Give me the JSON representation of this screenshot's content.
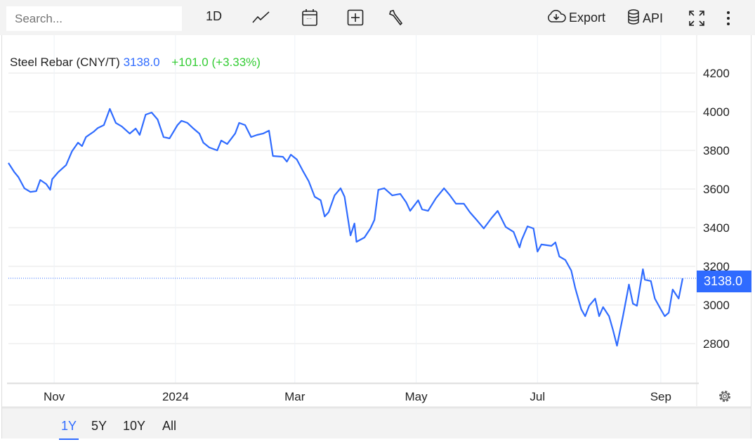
{
  "toolbar": {
    "search_placeholder": "Search...",
    "interval": "1D",
    "export": "Export",
    "api": "API",
    "icons": [
      "line-chart-icon",
      "calendar-icon",
      "add-icon",
      "wrench-icon",
      "cloud-download-icon",
      "database-icon",
      "fullscreen-icon",
      "more-icon"
    ]
  },
  "legend": {
    "name": "Steel Rebar (CNY/T)",
    "price": "3138.0",
    "change": "+101.0 (+3.33%)"
  },
  "last_price_tag": "3138.0",
  "ranges": [
    {
      "label": "1Y",
      "active": true
    },
    {
      "label": "5Y"
    },
    {
      "label": "10Y"
    },
    {
      "label": "All"
    }
  ],
  "colors": {
    "line": "#2f6bff",
    "up": "#33cc33",
    "tag": "#2f6bff"
  },
  "chart_data": {
    "type": "line",
    "title": "",
    "xlabel": "",
    "ylabel": "",
    "grid": true,
    "ylim": [
      2650,
      4350
    ],
    "x_range": [
      "2023-10-09",
      "2024-09-12"
    ],
    "y_ticks": [
      2800,
      3000,
      3200,
      3400,
      3600,
      3800,
      4000,
      4200
    ],
    "x_ticks": [
      {
        "date": "2023-11-01",
        "label": "Nov"
      },
      {
        "date": "2024-01-01",
        "label": "2024"
      },
      {
        "date": "2024-03-01",
        "label": "Mar"
      },
      {
        "date": "2024-05-01",
        "label": "May"
      },
      {
        "date": "2024-07-01",
        "label": "Jul"
      },
      {
        "date": "2024-09-01",
        "label": "Sep"
      }
    ],
    "series": [
      {
        "points": [
          [
            "2023-10-09",
            3735
          ],
          [
            "2023-10-12",
            3687
          ],
          [
            "2023-10-14",
            3662
          ],
          [
            "2023-10-17",
            3604
          ],
          [
            "2023-10-20",
            3585
          ],
          [
            "2023-10-23",
            3589
          ],
          [
            "2023-10-25",
            3647
          ],
          [
            "2023-10-28",
            3626
          ],
          [
            "2023-10-30",
            3596
          ],
          [
            "2023-10-31",
            3651
          ],
          [
            "2023-11-03",
            3687
          ],
          [
            "2023-11-07",
            3724
          ],
          [
            "2023-11-10",
            3796
          ],
          [
            "2023-11-13",
            3840
          ],
          [
            "2023-11-15",
            3822
          ],
          [
            "2023-11-17",
            3869
          ],
          [
            "2023-11-21",
            3898
          ],
          [
            "2023-11-23",
            3916
          ],
          [
            "2023-11-26",
            3931
          ],
          [
            "2023-11-29",
            4015
          ],
          [
            "2023-12-02",
            3942
          ],
          [
            "2023-12-05",
            3924
          ],
          [
            "2023-12-09",
            3887
          ],
          [
            "2023-12-12",
            3913
          ],
          [
            "2023-12-14",
            3880
          ],
          [
            "2023-12-17",
            3985
          ],
          [
            "2023-12-20",
            3996
          ],
          [
            "2023-12-23",
            3960
          ],
          [
            "2023-12-26",
            3869
          ],
          [
            "2023-12-29",
            3862
          ],
          [
            "2024-01-02",
            3931
          ],
          [
            "2024-01-04",
            3953
          ],
          [
            "2024-01-07",
            3942
          ],
          [
            "2024-01-10",
            3913
          ],
          [
            "2024-01-13",
            3887
          ],
          [
            "2024-01-15",
            3840
          ],
          [
            "2024-01-18",
            3815
          ],
          [
            "2024-01-22",
            3800
          ],
          [
            "2024-01-24",
            3851
          ],
          [
            "2024-01-27",
            3833
          ],
          [
            "2024-01-31",
            3887
          ],
          [
            "2024-02-02",
            3942
          ],
          [
            "2024-02-05",
            3931
          ],
          [
            "2024-02-08",
            3869
          ],
          [
            "2024-02-11",
            3880
          ],
          [
            "2024-02-14",
            3887
          ],
          [
            "2024-02-17",
            3902
          ],
          [
            "2024-02-19",
            3771
          ],
          [
            "2024-02-24",
            3767
          ],
          [
            "2024-02-26",
            3742
          ],
          [
            "2024-02-28",
            3778
          ],
          [
            "2024-03-02",
            3753
          ],
          [
            "2024-03-05",
            3695
          ],
          [
            "2024-03-08",
            3640
          ],
          [
            "2024-03-11",
            3560
          ],
          [
            "2024-03-14",
            3542
          ],
          [
            "2024-03-16",
            3458
          ],
          [
            "2024-03-18",
            3480
          ],
          [
            "2024-03-21",
            3567
          ],
          [
            "2024-03-24",
            3604
          ],
          [
            "2024-03-26",
            3560
          ],
          [
            "2024-03-29",
            3360
          ],
          [
            "2024-03-31",
            3422
          ],
          [
            "2024-04-01",
            3327
          ],
          [
            "2024-04-05",
            3349
          ],
          [
            "2024-04-08",
            3396
          ],
          [
            "2024-04-10",
            3440
          ],
          [
            "2024-04-12",
            3596
          ],
          [
            "2024-04-15",
            3604
          ],
          [
            "2024-04-19",
            3567
          ],
          [
            "2024-04-23",
            3575
          ],
          [
            "2024-04-26",
            3531
          ],
          [
            "2024-04-28",
            3487
          ],
          [
            "2024-05-02",
            3542
          ],
          [
            "2024-05-04",
            3495
          ],
          [
            "2024-05-07",
            3487
          ],
          [
            "2024-05-11",
            3553
          ],
          [
            "2024-05-15",
            3604
          ],
          [
            "2024-05-18",
            3567
          ],
          [
            "2024-05-21",
            3524
          ],
          [
            "2024-05-25",
            3524
          ],
          [
            "2024-05-28",
            3480
          ],
          [
            "2024-06-01",
            3433
          ],
          [
            "2024-06-04",
            3396
          ],
          [
            "2024-06-08",
            3451
          ],
          [
            "2024-06-11",
            3487
          ],
          [
            "2024-06-15",
            3404
          ],
          [
            "2024-06-19",
            3378
          ],
          [
            "2024-06-22",
            3298
          ],
          [
            "2024-06-23",
            3335
          ],
          [
            "2024-06-26",
            3407
          ],
          [
            "2024-06-29",
            3396
          ],
          [
            "2024-07-01",
            3276
          ],
          [
            "2024-07-03",
            3313
          ],
          [
            "2024-07-08",
            3306
          ],
          [
            "2024-07-10",
            3324
          ],
          [
            "2024-07-12",
            3251
          ],
          [
            "2024-07-15",
            3233
          ],
          [
            "2024-07-18",
            3178
          ],
          [
            "2024-07-20",
            3087
          ],
          [
            "2024-07-23",
            2978
          ],
          [
            "2024-07-25",
            2942
          ],
          [
            "2024-07-27",
            2996
          ],
          [
            "2024-07-30",
            3033
          ],
          [
            "2024-08-01",
            2942
          ],
          [
            "2024-08-03",
            2989
          ],
          [
            "2024-08-06",
            2942
          ],
          [
            "2024-08-08",
            2869
          ],
          [
            "2024-08-10",
            2789
          ],
          [
            "2024-08-13",
            2942
          ],
          [
            "2024-08-15",
            3051
          ],
          [
            "2024-08-16",
            3106
          ],
          [
            "2024-08-18",
            3007
          ],
          [
            "2024-08-20",
            2996
          ],
          [
            "2024-08-23",
            3185
          ],
          [
            "2024-08-24",
            3131
          ],
          [
            "2024-08-27",
            3124
          ],
          [
            "2024-08-29",
            3033
          ],
          [
            "2024-09-01",
            2978
          ],
          [
            "2024-09-03",
            2942
          ],
          [
            "2024-09-05",
            2960
          ],
          [
            "2024-09-07",
            3080
          ],
          [
            "2024-09-10",
            3033
          ],
          [
            "2024-09-12",
            3138
          ]
        ]
      }
    ]
  }
}
